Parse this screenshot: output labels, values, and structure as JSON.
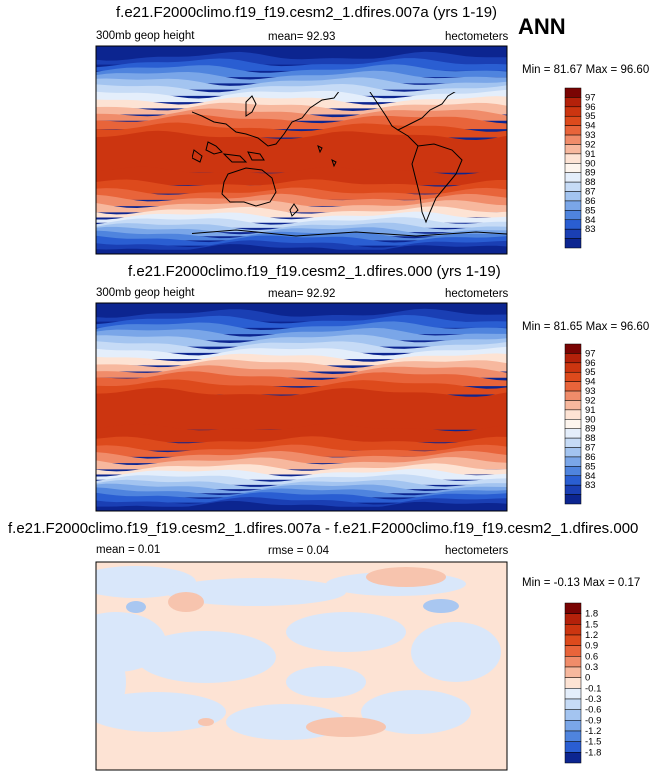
{
  "season": "ANN",
  "panels": [
    {
      "title": "f.e21.F2000climo.f19_f19.cesm2_1.dfires.007a (yrs 1-19)",
      "left_label": "300mb geop height",
      "center_label": "mean=  92.93",
      "right_label": "hectometers",
      "minmax": "Min = 81.67 Max = 96.60",
      "colorbar": {
        "labels": [
          "97",
          "96",
          "95",
          "94",
          "93",
          "92",
          "91",
          "90",
          "89",
          "88",
          "87",
          "86",
          "85",
          "84",
          "83"
        ],
        "colors": [
          "#7a0403",
          "#b4210a",
          "#cc3510",
          "#dd4a1c",
          "#e8643a",
          "#f08c6a",
          "#f7b89e",
          "#fde3d4",
          "#fdf5ee",
          "#e4eefb",
          "#c6dbf6",
          "#a3c4f0",
          "#7aa6e8",
          "#4f84de",
          "#2a5ed2",
          "#1a3fb4",
          "#0c2590"
        ]
      },
      "map": {
        "type": "absolute",
        "bands": [
          [
            "#0c2590",
            0.0
          ],
          [
            "#1a3fb4",
            0.05
          ],
          [
            "#2a5ed2",
            0.08
          ],
          [
            "#4f84de",
            0.11
          ],
          [
            "#7aa6e8",
            0.14
          ],
          [
            "#a3c4f0",
            0.17
          ],
          [
            "#c6dbf6",
            0.2
          ],
          [
            "#e4eefb",
            0.23
          ],
          [
            "#fde3d4",
            0.26
          ],
          [
            "#f7b89e",
            0.29
          ],
          [
            "#f08c6a",
            0.32
          ],
          [
            "#e8643a",
            0.35
          ],
          [
            "#dd4a1c",
            0.39
          ],
          [
            "#cc3510",
            0.43
          ],
          [
            "#cc3510",
            0.6
          ],
          [
            "#dd4a1c",
            0.66
          ],
          [
            "#e8643a",
            0.7
          ],
          [
            "#f08c6a",
            0.73
          ],
          [
            "#f7b89e",
            0.76
          ],
          [
            "#fde3d4",
            0.79
          ],
          [
            "#e4eefb",
            0.815
          ],
          [
            "#c6dbf6",
            0.84
          ],
          [
            "#a3c4f0",
            0.865
          ],
          [
            "#7aa6e8",
            0.885
          ],
          [
            "#4f84de",
            0.905
          ],
          [
            "#2a5ed2",
            0.925
          ],
          [
            "#1a3fb4",
            0.95
          ],
          [
            "#0c2590",
            0.97
          ]
        ]
      }
    },
    {
      "title": "f.e21.F2000climo.f19_f19.cesm2_1.dfires.000 (yrs 1-19)",
      "left_label": "300mb geop height",
      "center_label": "mean=  92.92",
      "right_label": "hectometers",
      "minmax": "Min = 81.65 Max = 96.60",
      "colorbar": {
        "labels": [
          "97",
          "96",
          "95",
          "94",
          "93",
          "92",
          "91",
          "90",
          "89",
          "88",
          "87",
          "86",
          "85",
          "84",
          "83"
        ],
        "colors": [
          "#7a0403",
          "#b4210a",
          "#cc3510",
          "#dd4a1c",
          "#e8643a",
          "#f08c6a",
          "#f7b89e",
          "#fde3d4",
          "#fdf5ee",
          "#e4eefb",
          "#c6dbf6",
          "#a3c4f0",
          "#7aa6e8",
          "#4f84de",
          "#2a5ed2",
          "#1a3fb4",
          "#0c2590"
        ]
      },
      "map": {
        "type": "absolute"
      }
    },
    {
      "title": "f.e21.F2000climo.f19_f19.cesm2_1.dfires.007a - f.e21.F2000climo.f19_f19.cesm2_1.dfires.000",
      "left_label": "mean =  0.01",
      "center_label": "rmse =  0.04",
      "right_label": "hectometers",
      "minmax": "Min = -0.13 Max =  0.17",
      "colorbar": {
        "labels": [
          "1.8",
          "1.5",
          "1.2",
          "0.9",
          "0.6",
          "0.3",
          "0",
          "-0.1",
          "-0.3",
          "-0.6",
          "-0.9",
          "-1.2",
          "-1.5",
          "-1.8"
        ],
        "colors": [
          "#7a0403",
          "#b4210a",
          "#cc3510",
          "#dd4a1c",
          "#e8643a",
          "#f08c6a",
          "#f7b89e",
          "#fde3d4",
          "#e4eefb",
          "#c6dbf6",
          "#a3c4f0",
          "#7aa6e8",
          "#4f84de",
          "#2a5ed2",
          "#0c2590"
        ]
      },
      "map": {
        "type": "difference",
        "background": "#fde3d4",
        "neg_color": "#d9e7fa",
        "neg_strong": "#a9c7f1",
        "pos_color": "#f7c4ae"
      }
    }
  ]
}
